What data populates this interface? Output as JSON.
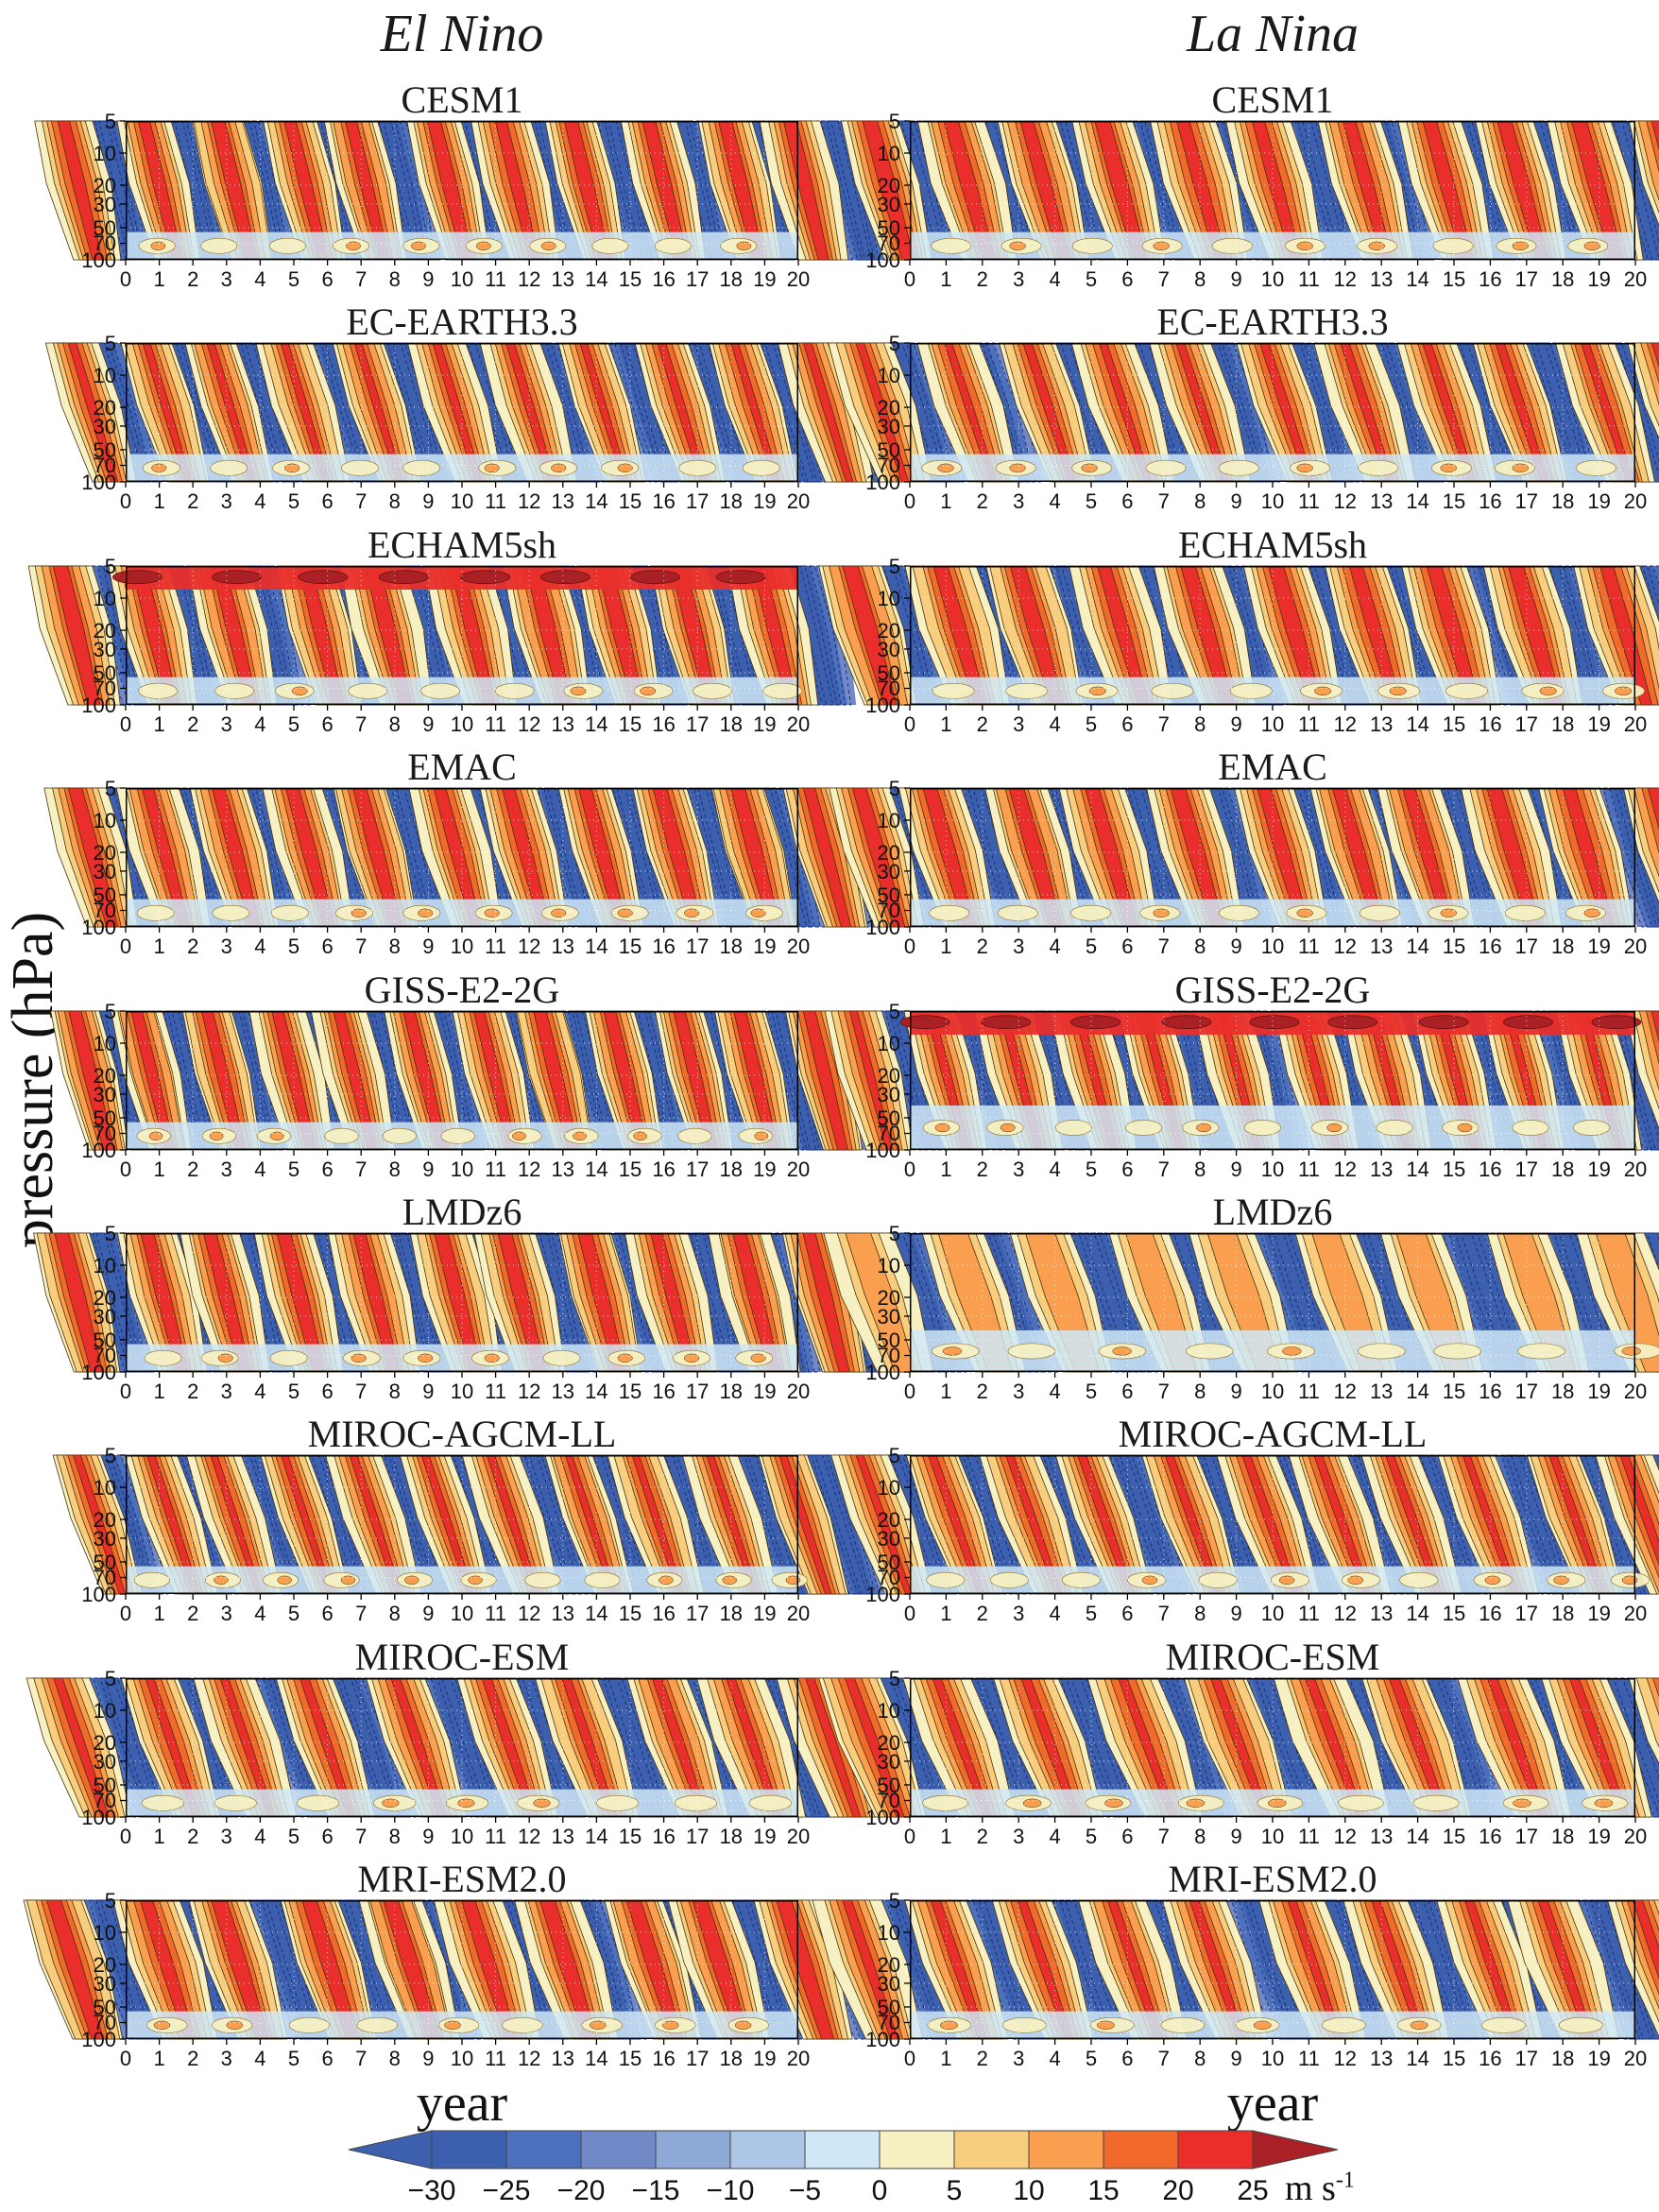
{
  "figure": {
    "col_titles": [
      "El Nino",
      "La Nina"
    ],
    "ylabel": "pressure (hPa)",
    "xlabel": "year",
    "axes": {
      "x_ticks": [
        "0",
        "1",
        "2",
        "3",
        "4",
        "5",
        "6",
        "7",
        "8",
        "9",
        "10",
        "11",
        "12",
        "13",
        "14",
        "15",
        "16",
        "17",
        "18",
        "19",
        "20"
      ],
      "y_ticks": [
        "5",
        "10",
        "20",
        "30",
        "50",
        "70",
        "100"
      ],
      "x_min": 0,
      "x_max": 20,
      "y_min_hPa": 5,
      "y_max_hPa": 100,
      "y_scale": "log"
    },
    "colorbar": {
      "unit": "m s",
      "unit_exp": "-1",
      "edge_labels": [
        "−30",
        "−25",
        "−20",
        "−15",
        "−10",
        "−5",
        "0",
        "5",
        "10",
        "15",
        "20",
        "25"
      ],
      "segment_colors": [
        "#3c5fae",
        "#4d70bc",
        "#7289c8",
        "#8ea9d6",
        "#adc6e6",
        "#cfe7f7",
        "#f6f0c2",
        "#f8cd7e",
        "#f99f4f",
        "#f16a2c",
        "#e92e2b"
      ],
      "arrow_left_color": "#3c5fae",
      "arrow_right_color": "#aa2125"
    }
  },
  "chart_data": {
    "type": "heatmap",
    "subtype": "filled-contour time-height sections",
    "title_columns": [
      "El Nino",
      "La Nina"
    ],
    "x": "year",
    "x_range": [
      0,
      20
    ],
    "y": "pressure (hPa)",
    "y_range_hPa": [
      5,
      100
    ],
    "y_scale": "log",
    "field": "zonal wind (m s-1), QBO-like descending easterly/westerly bands",
    "contour_interval": 5,
    "levels": [
      -30,
      -25,
      -20,
      -15,
      -10,
      -5,
      0,
      5,
      10,
      15,
      20,
      25
    ],
    "negative_contours": "dashed",
    "legend_position": "bottom-center colorbar with out-of-range arrows",
    "grid": "dotted white gridlines at integer years and labeled pressure levels",
    "models": [
      {
        "name": "CESM1",
        "panels": [
          {
            "column": "El Nino",
            "period_years": 2.15,
            "phase_years": 0.45,
            "lean_years": 1.0,
            "strength": "strong"
          },
          {
            "column": "La Nina",
            "period_years": 2.2,
            "phase_years": 0.95,
            "lean_years": 1.05,
            "strength": "strong"
          }
        ]
      },
      {
        "name": "EC-EARTH3.3",
        "panels": [
          {
            "column": "El Nino",
            "period_years": 2.2,
            "phase_years": 0.5,
            "lean_years": 1.25,
            "strength": "medium"
          },
          {
            "column": "La Nina",
            "period_years": 2.2,
            "phase_years": 0.85,
            "lean_years": 1.25,
            "strength": "medium"
          }
        ]
      },
      {
        "name": "ECHAM5sh",
        "panels": [
          {
            "column": "El Nino",
            "period_years": 2.3,
            "phase_years": 0.5,
            "lean_years": 1.0,
            "strength": "strong",
            "top_band": true
          },
          {
            "column": "La Nina",
            "period_years": 2.3,
            "phase_years": 0.75,
            "lean_years": 1.1,
            "strength": "strong"
          }
        ]
      },
      {
        "name": "EMAC",
        "panels": [
          {
            "column": "El Nino",
            "period_years": 2.2,
            "phase_years": 0.5,
            "lean_years": 1.1,
            "strength": "strong"
          },
          {
            "column": "La Nina",
            "period_years": 2.2,
            "phase_years": 0.75,
            "lean_years": 1.1,
            "strength": "strong"
          }
        ]
      },
      {
        "name": "GISS-E2-2G",
        "panels": [
          {
            "column": "El Nino",
            "period_years": 2.0,
            "phase_years": 0.45,
            "lean_years": 1.0,
            "strength": "strong"
          },
          {
            "column": "La Nina",
            "period_years": 2.0,
            "phase_years": 0.6,
            "lean_years": 1.0,
            "strength": "medium",
            "top_band": true,
            "pale_frac": 0.32
          }
        ]
      },
      {
        "name": "LMDz6",
        "panels": [
          {
            "column": "El Nino",
            "period_years": 2.2,
            "phase_years": 0.45,
            "lean_years": 1.05,
            "strength": "strong"
          },
          {
            "column": "La Nina",
            "period_years": 2.6,
            "phase_years": 1.0,
            "lean_years": 1.3,
            "strength": "weak",
            "pale_frac": 0.3
          }
        ]
      },
      {
        "name": "MIROC-AGCM-LL",
        "panels": [
          {
            "column": "El Nino",
            "period_years": 2.1,
            "phase_years": 0.55,
            "lean_years": 1.35,
            "strength": "medium"
          },
          {
            "column": "La Nina",
            "period_years": 2.1,
            "phase_years": 0.75,
            "lean_years": 1.35,
            "strength": "medium"
          }
        ]
      },
      {
        "name": "MIROC-ESM",
        "panels": [
          {
            "column": "El Nino",
            "period_years": 2.5,
            "phase_years": 0.55,
            "lean_years": 1.4,
            "strength": "medium"
          },
          {
            "column": "La Nina",
            "period_years": 2.5,
            "phase_years": 0.85,
            "lean_years": 1.4,
            "strength": "medium"
          }
        ]
      },
      {
        "name": "MRI-ESM2.0",
        "panels": [
          {
            "column": "El Nino",
            "period_years": 2.4,
            "phase_years": 0.5,
            "lean_years": 1.3,
            "strength": "strong"
          },
          {
            "column": "La Nina",
            "period_years": 2.4,
            "phase_years": 0.85,
            "lean_years": 1.3,
            "strength": "medium"
          }
        ]
      }
    ]
  }
}
